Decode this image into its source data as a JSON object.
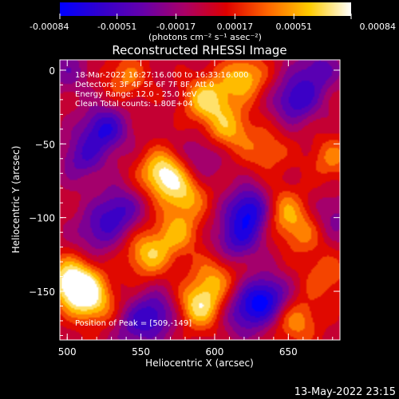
{
  "colorbar": {
    "ticks": [
      "-0.00084",
      "-0.00051",
      "-0.00017",
      "0.00017",
      "0.00051",
      "0.00084"
    ],
    "unit_label": "(photons cm⁻² s⁻¹ asec⁻²)",
    "colors": [
      "#0000ff",
      "#3300cc",
      "#6600aa",
      "#aa0066",
      "#dd0000",
      "#ff6600",
      "#ffcc00",
      "#ffffff"
    ]
  },
  "chart_data": {
    "type": "heatmap",
    "title": "Reconstructed RHESSI Image",
    "xlabel": "Heliocentric X (arcsec)",
    "ylabel": "Heliocentric Y (arcsec)",
    "xlim": [
      495,
      685
    ],
    "ylim": [
      -183,
      7
    ],
    "xticks": [
      500,
      550,
      600,
      650
    ],
    "yticks": [
      0,
      -50,
      -100,
      -150
    ],
    "colorbar_range": [
      -0.00084,
      0.00084
    ],
    "blobs": [
      {
        "x": 509,
        "y": -149,
        "v": 1.0
      },
      {
        "x": 500,
        "y": -140,
        "v": 0.55
      },
      {
        "x": 520,
        "y": -160,
        "v": 0.45
      },
      {
        "x": 565,
        "y": -70,
        "v": 0.95
      },
      {
        "x": 580,
        "y": -85,
        "v": 0.6
      },
      {
        "x": 555,
        "y": -125,
        "v": 0.7
      },
      {
        "x": 575,
        "y": -110,
        "v": 0.55
      },
      {
        "x": 590,
        "y": -160,
        "v": 0.85
      },
      {
        "x": 600,
        "y": -140,
        "v": 0.5
      },
      {
        "x": 595,
        "y": -20,
        "v": 0.8
      },
      {
        "x": 620,
        "y": -5,
        "v": 0.7
      },
      {
        "x": 610,
        "y": -40,
        "v": 0.6
      },
      {
        "x": 540,
        "y": -5,
        "v": 0.45
      },
      {
        "x": 635,
        "y": -55,
        "v": 0.4
      },
      {
        "x": 645,
        "y": -95,
        "v": 0.6
      },
      {
        "x": 660,
        "y": -110,
        "v": 0.45
      },
      {
        "x": 655,
        "y": -170,
        "v": 0.55
      },
      {
        "x": 680,
        "y": -60,
        "v": 0.45
      },
      {
        "x": 675,
        "y": -140,
        "v": 0.4
      },
      {
        "x": 525,
        "y": -40,
        "v": -0.75
      },
      {
        "x": 510,
        "y": -60,
        "v": -0.5
      },
      {
        "x": 535,
        "y": -95,
        "v": -0.6
      },
      {
        "x": 520,
        "y": -110,
        "v": -0.45
      },
      {
        "x": 625,
        "y": -95,
        "v": -0.95
      },
      {
        "x": 615,
        "y": -115,
        "v": -0.6
      },
      {
        "x": 635,
        "y": -155,
        "v": -0.85
      },
      {
        "x": 620,
        "y": -165,
        "v": -0.55
      },
      {
        "x": 560,
        "y": -165,
        "v": -0.6
      },
      {
        "x": 655,
        "y": -20,
        "v": -0.7
      },
      {
        "x": 670,
        "y": 0,
        "v": -0.5
      },
      {
        "x": 590,
        "y": -60,
        "v": -0.35
      },
      {
        "x": 545,
        "y": -175,
        "v": -0.4
      },
      {
        "x": 680,
        "y": -100,
        "v": -0.35
      },
      {
        "x": 500,
        "y": 0,
        "v": -0.35
      }
    ],
    "annotations": [
      "18-Mar-2022 16:27:16.000 to 16:33:16.000",
      "Detectors: 3F 4F 5F 6F 7F 8F, Att 0",
      "Energy Range: 12.0 - 25.0 keV",
      "Clean     Total counts: 1.80E+04"
    ],
    "peak_label": "Position of Peak = [509,-149]"
  },
  "footer": {
    "timestamp": "13-May-2022 23:15"
  }
}
